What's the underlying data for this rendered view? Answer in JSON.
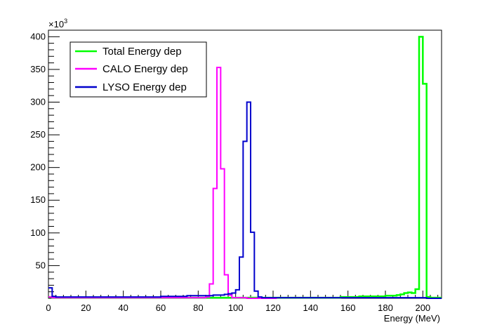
{
  "chart_data": {
    "type": "histogram",
    "xlabel": "Energy (MeV)",
    "ylabel": "",
    "y_exponent_label": "×10",
    "y_exponent_power": "3",
    "xlim": [
      0,
      210
    ],
    "ylim": [
      0,
      410
    ],
    "x_ticks": [
      0,
      20,
      40,
      60,
      80,
      100,
      120,
      140,
      160,
      180,
      200
    ],
    "y_ticks": [
      50,
      100,
      150,
      200,
      250,
      300,
      350,
      400
    ],
    "bin_width": 2,
    "legend_position": "top-left",
    "grid": false,
    "series": [
      {
        "name": "Total Energy dep",
        "color": "#00ff00",
        "points": [
          [
            0,
            2
          ],
          [
            2,
            1
          ],
          [
            4,
            1
          ],
          [
            6,
            1
          ],
          [
            8,
            1
          ],
          [
            10,
            1
          ],
          [
            12,
            1
          ],
          [
            14,
            1
          ],
          [
            16,
            1
          ],
          [
            18,
            1
          ],
          [
            20,
            1
          ],
          [
            22,
            1
          ],
          [
            24,
            1
          ],
          [
            26,
            1
          ],
          [
            28,
            1
          ],
          [
            30,
            1
          ],
          [
            32,
            1
          ],
          [
            34,
            1
          ],
          [
            36,
            1
          ],
          [
            38,
            1
          ],
          [
            40,
            1
          ],
          [
            42,
            1
          ],
          [
            44,
            1
          ],
          [
            46,
            1
          ],
          [
            48,
            1
          ],
          [
            50,
            1
          ],
          [
            52,
            1
          ],
          [
            54,
            1
          ],
          [
            56,
            1
          ],
          [
            58,
            1
          ],
          [
            60,
            1
          ],
          [
            62,
            1
          ],
          [
            64,
            1
          ],
          [
            66,
            1
          ],
          [
            68,
            1
          ],
          [
            70,
            1
          ],
          [
            72,
            1
          ],
          [
            74,
            1
          ],
          [
            76,
            1
          ],
          [
            78,
            1
          ],
          [
            80,
            1
          ],
          [
            82,
            1
          ],
          [
            84,
            1
          ],
          [
            86,
            1
          ],
          [
            88,
            1
          ],
          [
            90,
            1
          ],
          [
            92,
            1
          ],
          [
            94,
            1
          ],
          [
            96,
            1
          ],
          [
            98,
            1
          ],
          [
            100,
            1
          ],
          [
            102,
            1
          ],
          [
            104,
            1
          ],
          [
            106,
            1
          ],
          [
            108,
            1
          ],
          [
            110,
            1
          ],
          [
            112,
            1
          ],
          [
            114,
            1
          ],
          [
            116,
            1
          ],
          [
            118,
            1
          ],
          [
            120,
            1
          ],
          [
            122,
            1
          ],
          [
            124,
            1
          ],
          [
            126,
            1
          ],
          [
            128,
            1
          ],
          [
            130,
            1
          ],
          [
            132,
            1
          ],
          [
            134,
            1
          ],
          [
            136,
            1
          ],
          [
            138,
            1
          ],
          [
            140,
            1
          ],
          [
            142,
            1
          ],
          [
            144,
            1
          ],
          [
            146,
            1
          ],
          [
            148,
            1
          ],
          [
            150,
            1
          ],
          [
            152,
            1
          ],
          [
            154,
            1
          ],
          [
            156,
            2
          ],
          [
            158,
            2
          ],
          [
            160,
            2
          ],
          [
            162,
            2
          ],
          [
            164,
            2
          ],
          [
            166,
            3
          ],
          [
            168,
            3
          ],
          [
            170,
            3
          ],
          [
            172,
            3
          ],
          [
            174,
            3
          ],
          [
            176,
            3
          ],
          [
            178,
            3
          ],
          [
            180,
            4
          ],
          [
            182,
            4
          ],
          [
            184,
            4
          ],
          [
            186,
            5
          ],
          [
            188,
            6
          ],
          [
            190,
            8
          ],
          [
            192,
            9
          ],
          [
            194,
            8
          ],
          [
            196,
            14
          ],
          [
            198,
            400
          ],
          [
            200,
            328
          ],
          [
            202,
            2
          ],
          [
            204,
            1
          ],
          [
            206,
            1
          ],
          [
            208,
            1
          ]
        ]
      },
      {
        "name": "CALO Energy dep",
        "color": "#ff00ff",
        "points": [
          [
            0,
            2
          ],
          [
            2,
            1
          ],
          [
            4,
            1
          ],
          [
            6,
            1
          ],
          [
            8,
            1
          ],
          [
            10,
            1
          ],
          [
            12,
            1
          ],
          [
            14,
            1
          ],
          [
            16,
            1
          ],
          [
            18,
            1
          ],
          [
            20,
            1
          ],
          [
            22,
            1
          ],
          [
            24,
            1
          ],
          [
            26,
            1
          ],
          [
            28,
            1
          ],
          [
            30,
            1
          ],
          [
            32,
            1
          ],
          [
            34,
            1
          ],
          [
            36,
            1
          ],
          [
            38,
            1
          ],
          [
            40,
            1
          ],
          [
            42,
            1
          ],
          [
            44,
            1
          ],
          [
            46,
            1
          ],
          [
            48,
            1
          ],
          [
            50,
            1
          ],
          [
            52,
            1
          ],
          [
            54,
            1
          ],
          [
            56,
            1
          ],
          [
            58,
            1
          ],
          [
            60,
            1
          ],
          [
            62,
            1
          ],
          [
            64,
            1
          ],
          [
            66,
            1
          ],
          [
            68,
            1
          ],
          [
            70,
            1
          ],
          [
            72,
            1
          ],
          [
            74,
            1
          ],
          [
            76,
            1
          ],
          [
            78,
            1
          ],
          [
            80,
            1
          ],
          [
            82,
            1
          ],
          [
            84,
            2
          ],
          [
            86,
            22
          ],
          [
            88,
            168
          ],
          [
            90,
            353
          ],
          [
            92,
            198
          ],
          [
            94,
            36
          ],
          [
            96,
            5
          ],
          [
            98,
            1
          ],
          [
            100,
            1
          ],
          [
            102,
            1
          ],
          [
            104,
            1
          ],
          [
            106,
            0
          ],
          [
            108,
            0
          ],
          [
            110,
            0
          ],
          [
            112,
            0
          ],
          [
            114,
            0
          ],
          [
            116,
            0
          ],
          [
            118,
            0
          ],
          [
            120,
            0
          ]
        ]
      },
      {
        "name": "LYSO Energy dep",
        "color": "#0000cc",
        "points": [
          [
            0,
            16
          ],
          [
            2,
            3
          ],
          [
            4,
            2
          ],
          [
            6,
            2
          ],
          [
            8,
            2
          ],
          [
            10,
            2
          ],
          [
            12,
            2
          ],
          [
            14,
            2
          ],
          [
            16,
            2
          ],
          [
            18,
            2
          ],
          [
            20,
            2
          ],
          [
            22,
            2
          ],
          [
            24,
            2
          ],
          [
            26,
            2
          ],
          [
            28,
            2
          ],
          [
            30,
            2
          ],
          [
            32,
            2
          ],
          [
            34,
            2
          ],
          [
            36,
            2
          ],
          [
            38,
            2
          ],
          [
            40,
            2
          ],
          [
            42,
            2
          ],
          [
            44,
            2
          ],
          [
            46,
            2
          ],
          [
            48,
            2
          ],
          [
            50,
            2
          ],
          [
            52,
            2
          ],
          [
            54,
            2
          ],
          [
            56,
            2
          ],
          [
            58,
            2
          ],
          [
            60,
            3
          ],
          [
            62,
            3
          ],
          [
            64,
            3
          ],
          [
            66,
            3
          ],
          [
            68,
            3
          ],
          [
            70,
            3
          ],
          [
            72,
            3
          ],
          [
            74,
            4
          ],
          [
            76,
            4
          ],
          [
            78,
            4
          ],
          [
            80,
            4
          ],
          [
            82,
            4
          ],
          [
            84,
            4
          ],
          [
            86,
            4
          ],
          [
            88,
            5
          ],
          [
            90,
            5
          ],
          [
            92,
            5
          ],
          [
            94,
            6
          ],
          [
            96,
            7
          ],
          [
            98,
            8
          ],
          [
            100,
            13
          ],
          [
            102,
            63
          ],
          [
            104,
            240
          ],
          [
            106,
            300
          ],
          [
            108,
            101
          ],
          [
            110,
            11
          ],
          [
            112,
            2
          ],
          [
            114,
            1
          ],
          [
            116,
            1
          ],
          [
            118,
            1
          ],
          [
            120,
            1
          ],
          [
            122,
            1
          ],
          [
            124,
            1
          ],
          [
            126,
            1
          ],
          [
            128,
            1
          ],
          [
            130,
            1
          ],
          [
            132,
            1
          ],
          [
            134,
            1
          ],
          [
            136,
            1
          ],
          [
            138,
            1
          ],
          [
            140,
            1
          ],
          [
            142,
            1
          ],
          [
            144,
            1
          ],
          [
            146,
            1
          ],
          [
            148,
            1
          ],
          [
            150,
            1
          ],
          [
            152,
            1
          ],
          [
            154,
            1
          ],
          [
            156,
            1
          ],
          [
            158,
            1
          ],
          [
            160,
            1
          ],
          [
            162,
            1
          ],
          [
            164,
            1
          ],
          [
            166,
            1
          ],
          [
            168,
            1
          ],
          [
            170,
            1
          ],
          [
            172,
            1
          ],
          [
            174,
            1
          ],
          [
            176,
            1
          ],
          [
            178,
            1
          ],
          [
            180,
            1
          ],
          [
            182,
            1
          ],
          [
            184,
            1
          ],
          [
            186,
            1
          ],
          [
            188,
            1
          ],
          [
            190,
            1
          ],
          [
            192,
            1
          ],
          [
            194,
            1
          ],
          [
            196,
            1
          ],
          [
            198,
            1
          ],
          [
            200,
            1
          ],
          [
            202,
            0
          ],
          [
            204,
            0
          ],
          [
            206,
            0
          ],
          [
            208,
            0
          ]
        ]
      }
    ]
  }
}
